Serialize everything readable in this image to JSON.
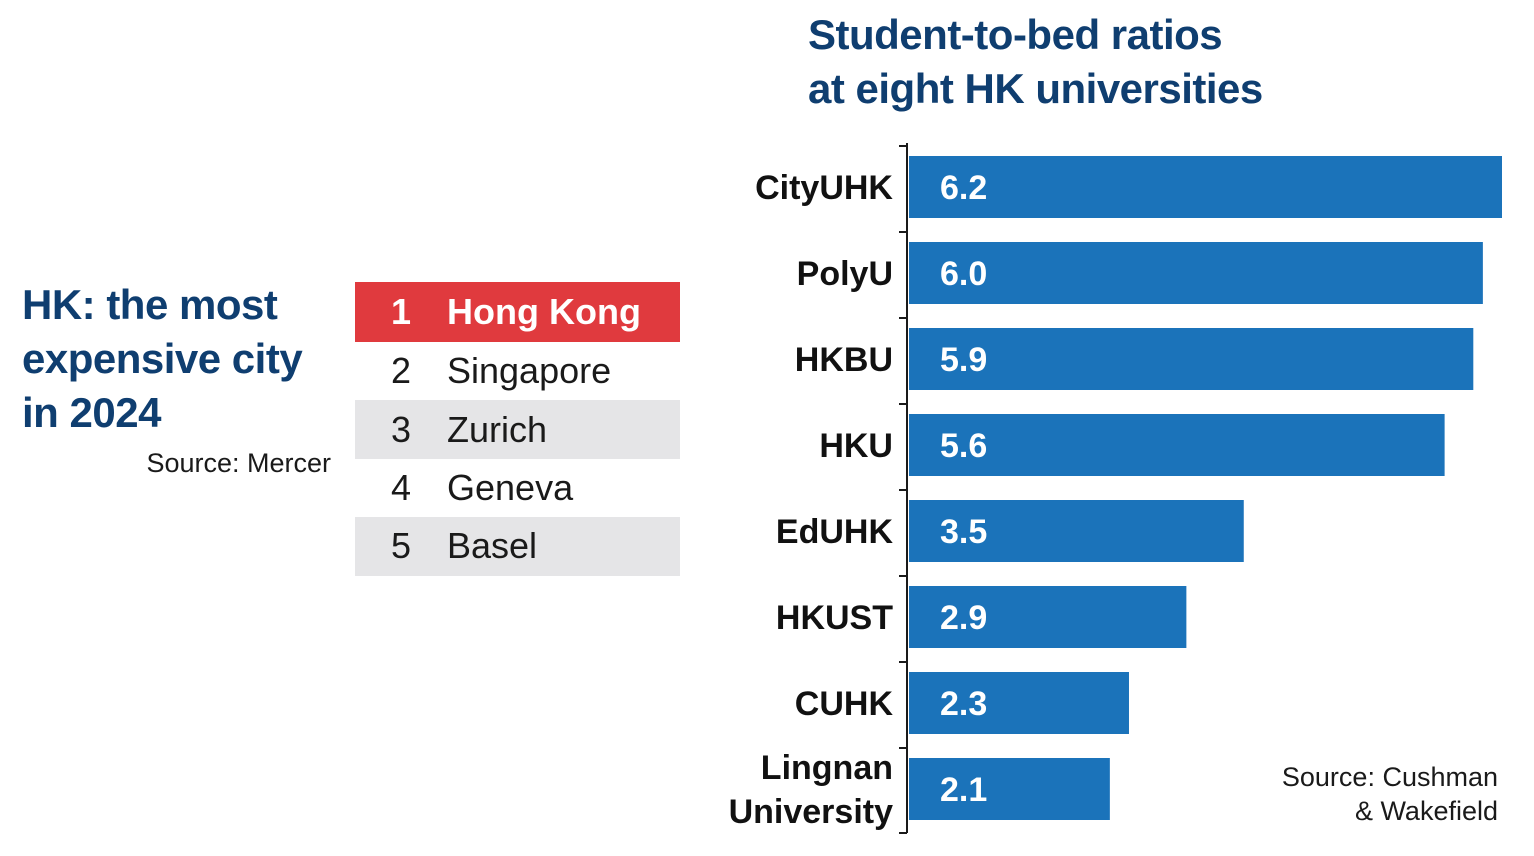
{
  "left_panel": {
    "title_lines": [
      "HK: the most",
      "expensive city",
      "in 2024"
    ],
    "source": "Source: Mercer",
    "ranking": [
      {
        "rank": "1",
        "city": "Hong Kong"
      },
      {
        "rank": "2",
        "city": "Singapore"
      },
      {
        "rank": "3",
        "city": "Zurich"
      },
      {
        "rank": "4",
        "city": "Geneva"
      },
      {
        "rank": "5",
        "city": "Basel"
      }
    ],
    "highlight_color": "#e03a3e",
    "shade_color": "#e5e5e7"
  },
  "chart_data": {
    "type": "bar",
    "orientation": "horizontal",
    "title_lines": [
      "Student-to-bed ratios",
      "at eight HK universities"
    ],
    "categories": [
      [
        "CityUHK"
      ],
      [
        "PolyU"
      ],
      [
        "HKBU"
      ],
      [
        "HKU"
      ],
      [
        "EdUHK"
      ],
      [
        "HKUST"
      ],
      [
        "CUHK"
      ],
      [
        "Lingnan",
        "University"
      ]
    ],
    "values": [
      6.2,
      6.0,
      5.9,
      5.6,
      3.5,
      2.9,
      2.3,
      2.1
    ],
    "value_labels": [
      "6.2",
      "6.0",
      "5.9",
      "5.6",
      "3.5",
      "2.9",
      "2.3",
      "2.1"
    ],
    "xlim": [
      0,
      6.2
    ],
    "grid": false,
    "bar_color": "#1b73ba",
    "source_lines": [
      "Source: Cushman",
      "& Wakefield"
    ]
  }
}
